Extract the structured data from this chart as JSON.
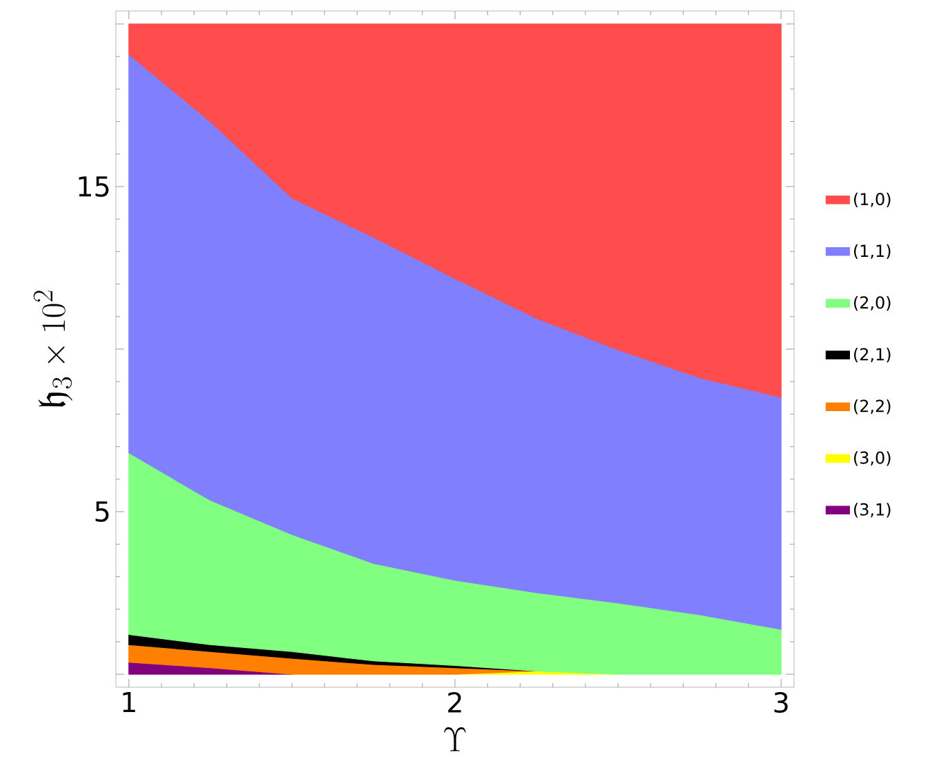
{
  "chart_data": {
    "type": "area",
    "stacked": true,
    "xlabel": "\\Upsilon",
    "ylabel": "\\mathfrak{h}_3 \\times 10^2",
    "x": [
      1,
      1.25,
      1.5,
      1.75,
      2,
      2.25,
      2.5,
      2.75,
      3
    ],
    "xlim": [
      0.96,
      3.04
    ],
    "xticks": [
      1,
      2,
      3
    ],
    "ylim": [
      -0.4,
      20.4
    ],
    "yticks": [
      {
        "value": 0,
        "label": null
      },
      5,
      {
        "value": 10,
        "label": null
      },
      15,
      {
        "value": 20,
        "label": null
      }
    ],
    "legend": "right",
    "series": [
      {
        "name": "(3,1)",
        "color": "#800080",
        "values": [
          0.37,
          0.2,
          0,
          null,
          null,
          null,
          null,
          null,
          null
        ]
      },
      {
        "name": "(3,0)",
        "color": "#ffff00",
        "values": [
          null,
          null,
          null,
          null,
          0,
          0.1,
          0,
          null,
          null
        ]
      },
      {
        "name": "(2,2)",
        "color": "#ff8000",
        "values": [
          0.54,
          0.5,
          0.49,
          0.3,
          0.2,
          0,
          null,
          null,
          null
        ]
      },
      {
        "name": "(2,1)",
        "color": "#000000",
        "values": [
          0.31,
          0.21,
          0.21,
          0.11,
          0.07,
          0,
          null,
          null,
          null
        ]
      },
      {
        "name": "(2,0)",
        "color": "#80ff80",
        "values": [
          5.59,
          4.44,
          3.6,
          3.0,
          2.62,
          2.41,
          2.19,
          1.83,
          1.38
        ]
      },
      {
        "name": "(1,1)",
        "color": "#8080ff",
        "values": [
          12.26,
          11.65,
          10.35,
          10.03,
          9.28,
          8.44,
          7.79,
          7.29,
          7.14
        ]
      },
      {
        "name": "(1,0)",
        "color": "#ff4d4d",
        "values": [
          0.93,
          3.0,
          5.35,
          6.56,
          7.83,
          9.05,
          10.02,
          10.88,
          11.48
        ]
      }
    ]
  }
}
